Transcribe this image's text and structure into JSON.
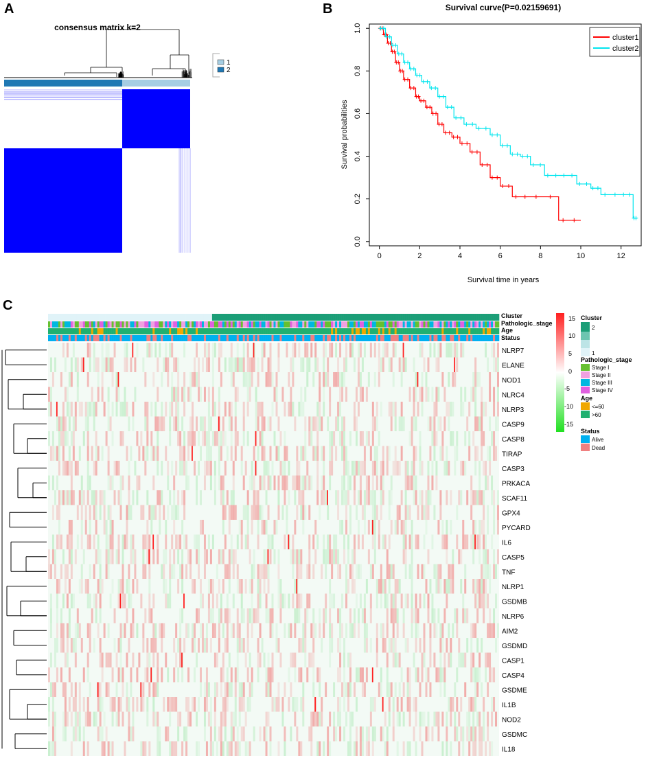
{
  "panels": {
    "a": "A",
    "b": "B",
    "c": "C"
  },
  "panel_a": {
    "title": "consensus matrix k=2",
    "legend": [
      {
        "label": "1",
        "color": "#a6cee3"
      },
      {
        "label": "2",
        "color": "#1f78b4"
      }
    ],
    "matrix_color": "#0000ff"
  },
  "panel_b": {
    "title": "Survival curve(P=0.02159691)",
    "xlabel": "Survival time in years",
    "ylabel": "Survival probabilities",
    "legend": [
      {
        "label": "cluster1",
        "color": "#ff0000"
      },
      {
        "label": "cluster2",
        "color": "#00e5ee"
      }
    ]
  },
  "panel_c": {
    "track_labels": [
      "Cluster",
      "Pathologic_stage",
      "Age",
      "Status"
    ],
    "genes": [
      "NLRP7",
      "ELANE",
      "NOD1",
      "NLRC4",
      "NLRP3",
      "CASP9",
      "CASP8",
      "TIRAP",
      "CASP3",
      "PRKACA",
      "SCAF11",
      "GPX4",
      "PYCARD",
      "IL6",
      "CASP5",
      "TNF",
      "NLRP1",
      "GSDMB",
      "NLRP6",
      "AIM2",
      "GSDMD",
      "CASP1",
      "CASP4",
      "GSDME",
      "IL1B",
      "NOD2",
      "GSDMC",
      "IL18"
    ],
    "colorbar_ticks": [
      "15",
      "10",
      "5",
      "0",
      "-5",
      "-10",
      "-15"
    ],
    "legend": {
      "cluster": {
        "title": "Cluster",
        "labels": [
          "2",
          "1"
        ],
        "colors": [
          "#1b9e77",
          "#e0f3f8"
        ]
      },
      "stage": {
        "title": "Pathologic_stage",
        "labels": [
          "Stage I",
          "Stage II",
          "Stage III",
          "Stage IV"
        ],
        "colors": [
          "#66c030",
          "#f0a0e0",
          "#00b8e0",
          "#e060e0"
        ]
      },
      "age": {
        "title": "Age",
        "labels": [
          "<=60",
          ">60"
        ],
        "colors": [
          "#f0a800",
          "#20b070"
        ]
      },
      "status": {
        "title": "Status",
        "labels": [
          "Alive",
          "Dead"
        ],
        "colors": [
          "#00b0f0",
          "#f08080"
        ]
      }
    }
  },
  "chart_data": [
    {
      "type": "heatmap",
      "title": "consensus matrix k=2",
      "clusters": [
        "1",
        "2"
      ],
      "description_values": {
        "cluster_1_fraction": 0.35,
        "cluster_2_fraction": 0.65
      }
    },
    {
      "type": "line",
      "title": "Survival curve(P=0.02159691)",
      "xlabel": "Survival time in years",
      "ylabel": "Survival probabilities",
      "xlim": [
        -0.5,
        13
      ],
      "ylim": [
        -0.02,
        1.02
      ],
      "xticks": [
        0,
        2,
        4,
        6,
        8,
        10,
        12
      ],
      "yticks": [
        0.0,
        0.2,
        0.4,
        0.6,
        0.8,
        1.0
      ],
      "series": [
        {
          "name": "cluster1",
          "color": "#ff0000",
          "x": [
            0,
            0.2,
            0.4,
            0.6,
            0.8,
            1.0,
            1.2,
            1.5,
            1.8,
            2.0,
            2.3,
            2.6,
            2.9,
            3.2,
            3.6,
            4.0,
            4.5,
            5.0,
            5.5,
            6.0,
            6.6,
            7.5,
            8.9,
            10.0
          ],
          "y": [
            1.0,
            0.97,
            0.93,
            0.89,
            0.84,
            0.8,
            0.76,
            0.72,
            0.68,
            0.66,
            0.63,
            0.6,
            0.55,
            0.51,
            0.49,
            0.46,
            0.42,
            0.36,
            0.3,
            0.26,
            0.21,
            0.21,
            0.1,
            0.1
          ]
        },
        {
          "name": "cluster2",
          "color": "#00e5ee",
          "x": [
            0,
            0.3,
            0.6,
            0.9,
            1.2,
            1.5,
            1.8,
            2.1,
            2.5,
            2.9,
            3.3,
            3.7,
            4.2,
            4.8,
            5.5,
            6.0,
            6.5,
            7.0,
            7.5,
            8.2,
            9.0,
            9.8,
            10.5,
            11.0,
            12.0,
            12.6,
            12.8
          ],
          "y": [
            1.0,
            0.96,
            0.92,
            0.88,
            0.84,
            0.81,
            0.78,
            0.75,
            0.72,
            0.68,
            0.63,
            0.58,
            0.55,
            0.53,
            0.5,
            0.45,
            0.41,
            0.4,
            0.36,
            0.31,
            0.31,
            0.27,
            0.25,
            0.22,
            0.22,
            0.11,
            0.11
          ]
        }
      ]
    },
    {
      "type": "heatmap",
      "genes": [
        "NLRP7",
        "ELANE",
        "NOD1",
        "NLRC4",
        "NLRP3",
        "CASP9",
        "CASP8",
        "TIRAP",
        "CASP3",
        "PRKACA",
        "SCAF11",
        "GPX4",
        "PYCARD",
        "IL6",
        "CASP5",
        "TNF",
        "NLRP1",
        "GSDMB",
        "NLRP6",
        "AIM2",
        "GSDMD",
        "CASP1",
        "CASP4",
        "GSDME",
        "IL1B",
        "NOD2",
        "GSDMC",
        "IL18"
      ],
      "color_range": [
        -15,
        17
      ],
      "annotations": [
        "Cluster",
        "Pathologic_stage",
        "Age",
        "Status"
      ]
    }
  ]
}
